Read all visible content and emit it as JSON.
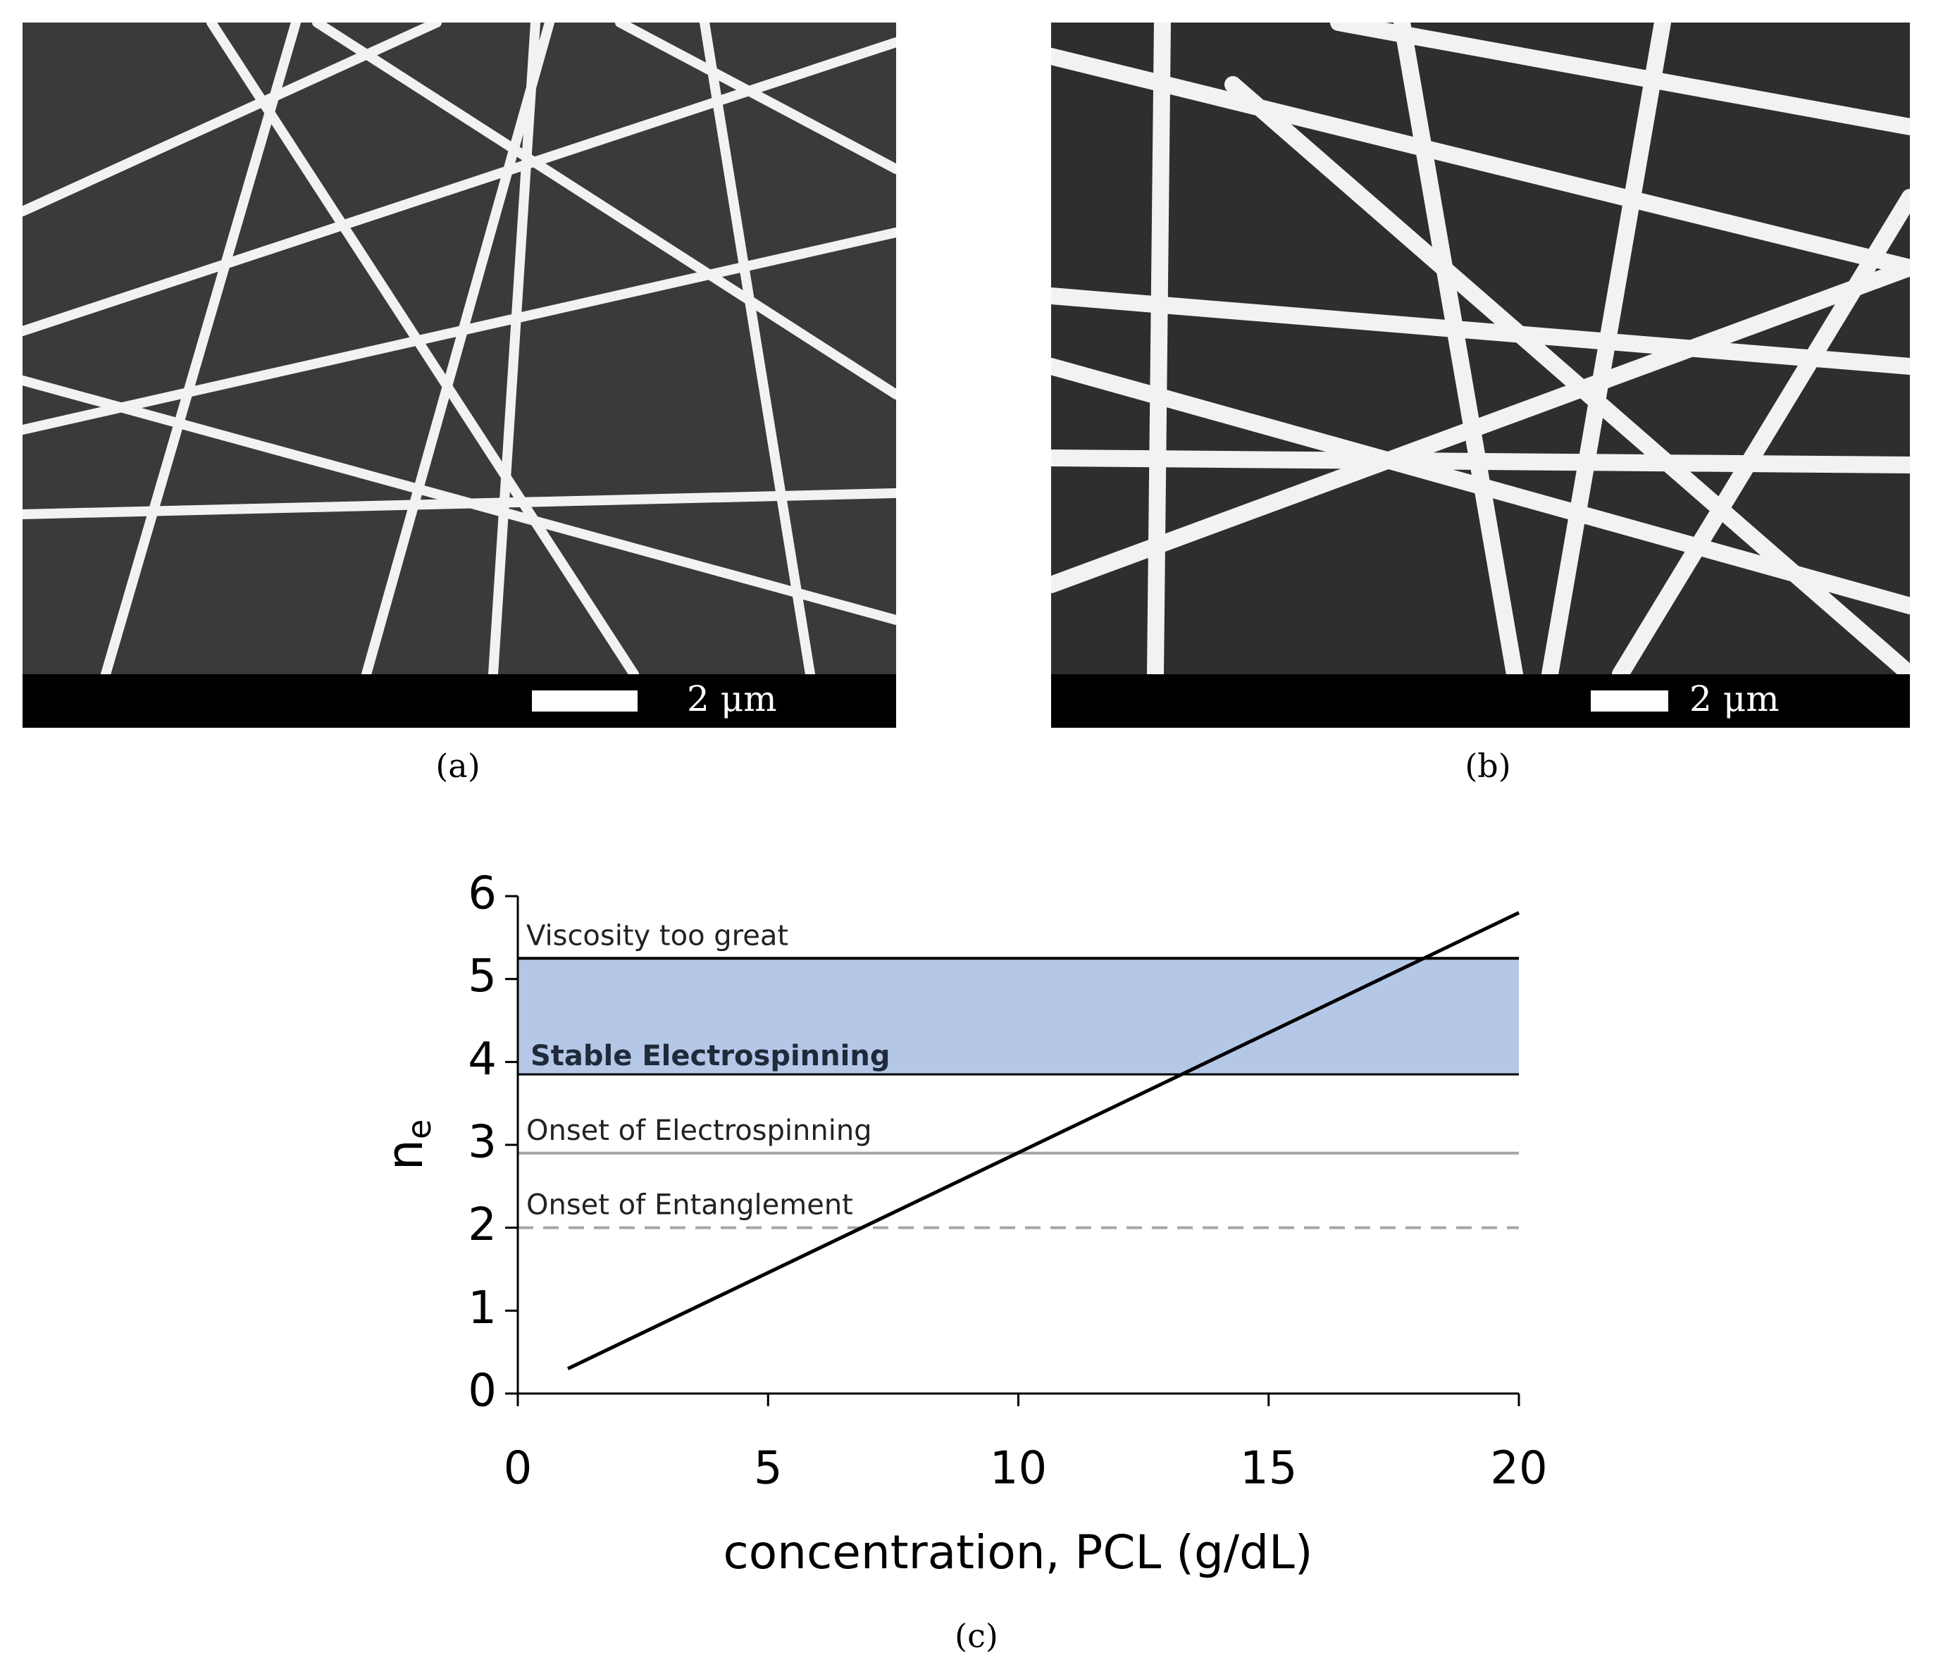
{
  "figure": {
    "panels": [
      {
        "label": "(a)",
        "scale_bar": "2 μm"
      },
      {
        "label": "(b)",
        "scale_bar": "2 μm"
      }
    ]
  },
  "chart_data": {
    "type": "line",
    "caption": "(c)",
    "xlabel": "concentration, PCL (g/dL)",
    "ylabel": "n",
    "ylabel_sub": "e",
    "x": [
      1,
      20
    ],
    "series": [
      {
        "color": "#000000",
        "values": [
          0.3,
          5.8
        ]
      }
    ],
    "regions": [
      {
        "label": "Stable Electrospinning",
        "range": [
          3.85,
          5.25
        ],
        "color": "#b4c7e7"
      }
    ],
    "reference_lines": [
      {
        "label": "Viscosity too great",
        "value": 5.25,
        "color": "#000000",
        "style": "solid"
      },
      {
        "label": "Onset of Electrospinning",
        "value": 2.9,
        "color": "#a6a6a6",
        "style": "solid"
      },
      {
        "label": "Onset of Entanglement",
        "value": 2.0,
        "color": "#a6a6a6",
        "style": "dashed"
      }
    ],
    "xlim": [
      0,
      20
    ],
    "xticks": [
      0,
      5,
      10,
      15,
      20
    ],
    "ylim": [
      0,
      6
    ],
    "yticks": [
      0,
      1,
      2,
      3,
      4,
      5,
      6
    ]
  }
}
